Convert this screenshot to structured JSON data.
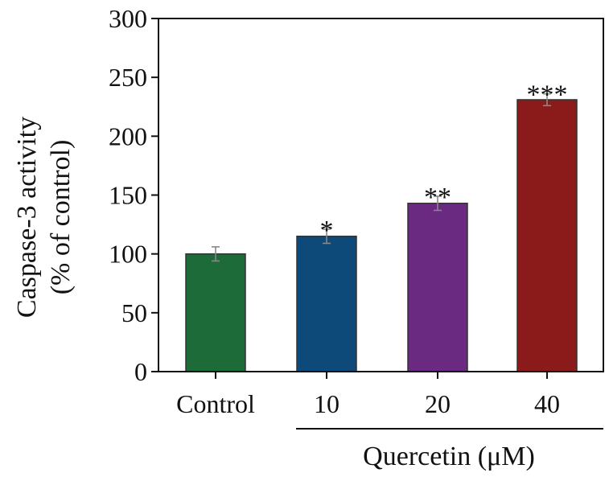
{
  "chart_data": {
    "type": "bar",
    "categories": [
      "Control",
      "10",
      "20",
      "40"
    ],
    "values": [
      100,
      115,
      143,
      231
    ],
    "errors": [
      6,
      6,
      6,
      5
    ],
    "colors": [
      "#1e6b3a",
      "#0d4a7a",
      "#6a2a82",
      "#8b1a1a"
    ],
    "significance": [
      "",
      "*",
      "**",
      "***"
    ],
    "ylabel_line1": "Caspase-3 activity",
    "ylabel_line2": "(% of control)",
    "group_label": "Quercetin (μM)",
    "ylim": [
      0,
      300
    ],
    "yticks": [
      0,
      50,
      100,
      150,
      200,
      250,
      300
    ],
    "ytick_labels": [
      "0",
      "50",
      "100",
      "150",
      "200",
      "250",
      "300"
    ]
  }
}
